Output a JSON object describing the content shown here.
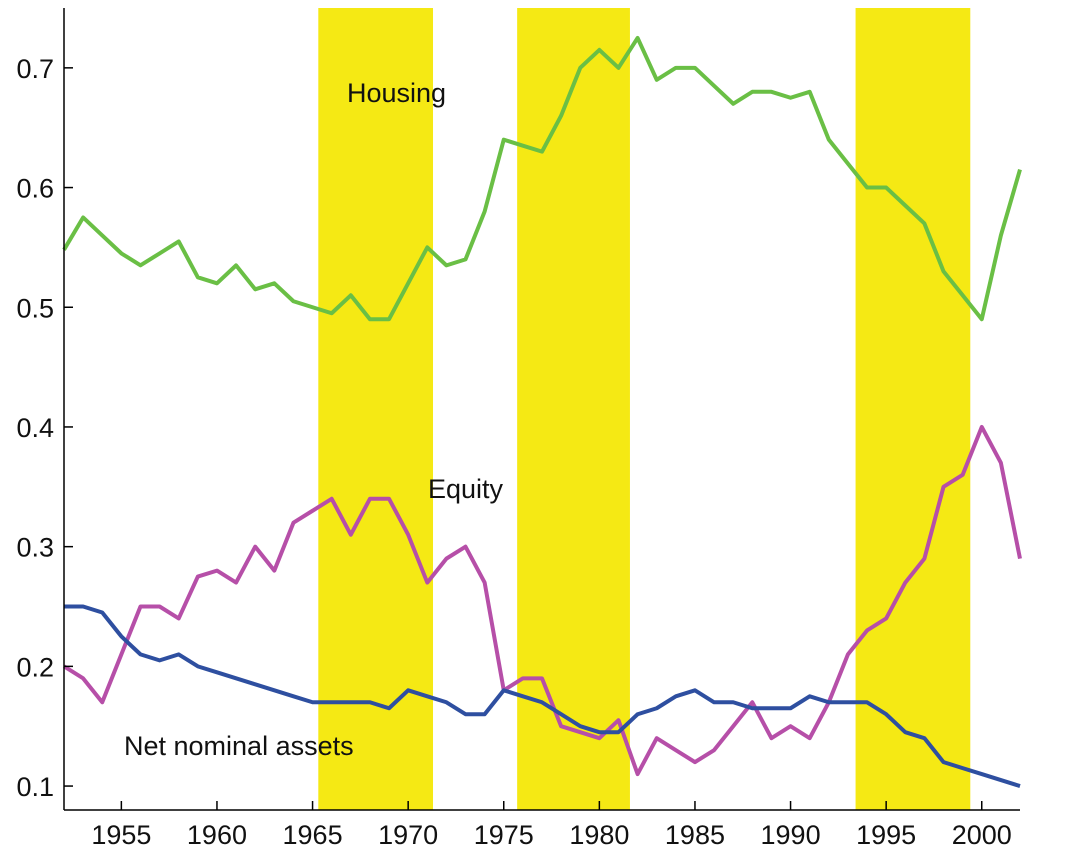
{
  "chart_data": {
    "type": "line",
    "annotations": [
      "Housing",
      "Equity",
      "Net nominal assets"
    ],
    "x": [
      1952,
      1953,
      1954,
      1955,
      1956,
      1957,
      1958,
      1959,
      1960,
      1961,
      1962,
      1963,
      1964,
      1965,
      1966,
      1967,
      1968,
      1969,
      1970,
      1971,
      1972,
      1973,
      1974,
      1975,
      1976,
      1977,
      1978,
      1979,
      1980,
      1981,
      1982,
      1983,
      1984,
      1985,
      1986,
      1987,
      1988,
      1989,
      1990,
      1991,
      1992,
      1993,
      1994,
      1995,
      1996,
      1997,
      1998,
      1999,
      2000,
      2001,
      2002
    ],
    "series": [
      {
        "name": "Housing",
        "color": "#6abf45",
        "values": [
          0.548,
          0.575,
          0.56,
          0.545,
          0.535,
          0.545,
          0.555,
          0.525,
          0.52,
          0.535,
          0.515,
          0.52,
          0.505,
          0.5,
          0.495,
          0.51,
          0.49,
          0.49,
          0.52,
          0.55,
          0.535,
          0.54,
          0.58,
          0.64,
          0.635,
          0.63,
          0.66,
          0.7,
          0.715,
          0.7,
          0.725,
          0.69,
          0.7,
          0.7,
          0.685,
          0.67,
          0.68,
          0.68,
          0.675,
          0.68,
          0.64,
          0.62,
          0.6,
          0.6,
          0.585,
          0.57,
          0.53,
          0.51,
          0.49,
          0.56,
          0.615
        ]
      },
      {
        "name": "Equity",
        "color": "#b64fa8",
        "values": [
          0.2,
          0.19,
          0.17,
          0.21,
          0.25,
          0.25,
          0.24,
          0.275,
          0.28,
          0.27,
          0.3,
          0.28,
          0.32,
          0.33,
          0.34,
          0.31,
          0.34,
          0.34,
          0.31,
          0.27,
          0.29,
          0.3,
          0.27,
          0.18,
          0.19,
          0.19,
          0.15,
          0.145,
          0.14,
          0.155,
          0.11,
          0.14,
          0.13,
          0.12,
          0.13,
          0.15,
          0.17,
          0.14,
          0.15,
          0.14,
          0.17,
          0.21,
          0.23,
          0.24,
          0.27,
          0.29,
          0.35,
          0.36,
          0.4,
          0.37,
          0.29
        ]
      },
      {
        "name": "Net nominal assets",
        "color": "#2e4fa0",
        "values": [
          0.25,
          0.25,
          0.245,
          0.225,
          0.21,
          0.205,
          0.21,
          0.2,
          0.195,
          0.19,
          0.185,
          0.18,
          0.175,
          0.17,
          0.17,
          0.17,
          0.17,
          0.165,
          0.18,
          0.175,
          0.17,
          0.16,
          0.16,
          0.18,
          0.175,
          0.17,
          0.16,
          0.15,
          0.145,
          0.145,
          0.16,
          0.165,
          0.175,
          0.18,
          0.17,
          0.17,
          0.165,
          0.165,
          0.165,
          0.175,
          0.17,
          0.17,
          0.17,
          0.16,
          0.145,
          0.14,
          0.12,
          0.115,
          0.11,
          0.105,
          0.1
        ]
      }
    ],
    "shaded_regions": [
      [
        1965.3,
        1971.3
      ],
      [
        1975.7,
        1981.6
      ],
      [
        1993.4,
        1999.4
      ]
    ],
    "shade_color": "#f5e914",
    "xlim": [
      1952,
      2002
    ],
    "xticks": [
      1955,
      1960,
      1965,
      1970,
      1975,
      1980,
      1985,
      1990,
      1995,
      2000
    ],
    "ylim": [
      0.08,
      0.75
    ],
    "yticks": [
      0.1,
      0.2,
      0.3,
      0.4,
      0.5,
      0.6,
      0.7
    ],
    "grid": false
  }
}
